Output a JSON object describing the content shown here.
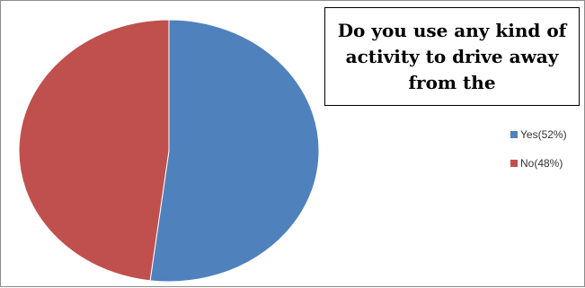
{
  "chart_data": {
    "type": "pie",
    "title": "Do you use any kind of activity to drive away from the",
    "categories": [
      "Yes(52%)",
      "No(48%)"
    ],
    "values": [
      52,
      48
    ],
    "colors": [
      "#4f81bd",
      "#c0504d"
    ],
    "legend": "right"
  }
}
